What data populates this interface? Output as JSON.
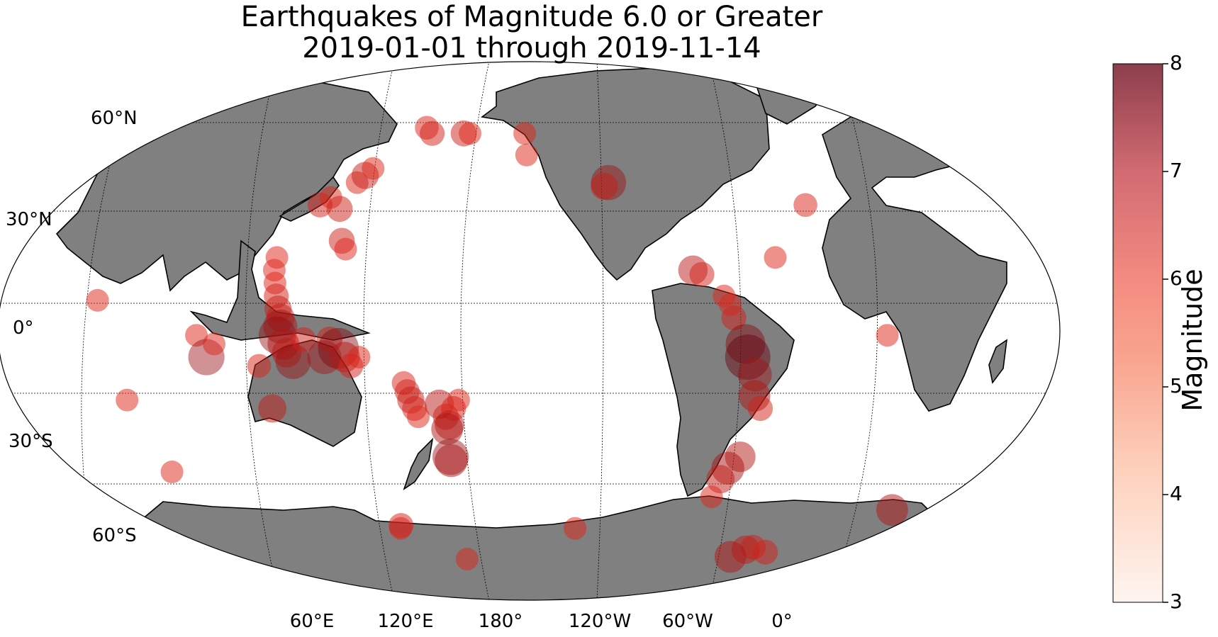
{
  "title": {
    "line1": "Earthquakes of Magnitude 6.0 or Greater",
    "line2": "2019-01-01 through 2019-11-14"
  },
  "map": {
    "projection": "Robinson",
    "central_longitude": "central Pacific",
    "land_color": "#808080",
    "ocean_color": "#ffffff",
    "coastline_color": "#000000",
    "marker_color": "#dd2418",
    "lat_labels": [
      "60°N",
      "30°N",
      "0°",
      "30°S",
      "60°S"
    ],
    "lon_labels": [
      "60°E",
      "120°E",
      "180°",
      "120°W",
      "60°W",
      "0°"
    ]
  },
  "colorbar": {
    "label": "Magnitude",
    "ticks": [
      "8",
      "7",
      "6",
      "5",
      "4",
      "3"
    ],
    "min": 3,
    "max": 8,
    "color_low": "#fff5f0",
    "color_high": "#67000d"
  },
  "chart_data": {
    "type": "scatter",
    "title": "Earthquakes of Magnitude 6.0 or Greater\n2019-01-01 through 2019-11-14",
    "xlabel": "",
    "ylabel": "",
    "x_axis": "longitude",
    "y_axis": "latitude",
    "size_and_color": "magnitude",
    "points": [
      {
        "lon": 60,
        "lat": 7,
        "mag": 6.0
      },
      {
        "lon": 67,
        "lat": -16,
        "mag": 6.0
      },
      {
        "lon": 69,
        "lat": -34,
        "mag": 6.0
      },
      {
        "lon": 95,
        "lat": -1,
        "mag": 6.0
      },
      {
        "lon": 98,
        "lat": -6,
        "mag": 7.2
      },
      {
        "lon": 101,
        "lat": -3,
        "mag": 6.0
      },
      {
        "lon": 116,
        "lat": -8,
        "mag": 6.1
      },
      {
        "lon": 118,
        "lat": -18,
        "mag": 6.5
      },
      {
        "lon": 120,
        "lat": 17,
        "mag": 6.0
      },
      {
        "lon": 120,
        "lat": 14,
        "mag": 6.0
      },
      {
        "lon": 121,
        "lat": 11,
        "mag": 6.0
      },
      {
        "lon": 122,
        "lat": 8,
        "mag": 6.2
      },
      {
        "lon": 123,
        "lat": 5,
        "mag": 6.4
      },
      {
        "lon": 124,
        "lat": 3,
        "mag": 6.5
      },
      {
        "lon": 124,
        "lat": 1,
        "mag": 7.0
      },
      {
        "lon": 123,
        "lat": -1,
        "mag": 7.3
      },
      {
        "lon": 125,
        "lat": -3,
        "mag": 6.8
      },
      {
        "lon": 126,
        "lat": -5,
        "mag": 6.6
      },
      {
        "lon": 128,
        "lat": -7,
        "mag": 7.1
      },
      {
        "lon": 132,
        "lat": -2,
        "mag": 6.2
      },
      {
        "lon": 139,
        "lat": -6,
        "mag": 7.0
      },
      {
        "lon": 141,
        "lat": -2,
        "mag": 6.3
      },
      {
        "lon": 144,
        "lat": -4,
        "mag": 7.6
      },
      {
        "lon": 146,
        "lat": -6,
        "mag": 6.7
      },
      {
        "lon": 148,
        "lat": -8,
        "mag": 6.2
      },
      {
        "lon": 151,
        "lat": -6,
        "mag": 6.0
      },
      {
        "lon": 130,
        "lat": 30,
        "mag": 6.2
      },
      {
        "lon": 133,
        "lat": 32,
        "mag": 6.0
      },
      {
        "lon": 138,
        "lat": 29,
        "mag": 6.3
      },
      {
        "lon": 141,
        "lat": 36,
        "mag": 6.0
      },
      {
        "lon": 143,
        "lat": 38,
        "mag": 6.4
      },
      {
        "lon": 145,
        "lat": 40,
        "mag": 6.0
      },
      {
        "lon": 142,
        "lat": 21,
        "mag": 6.3
      },
      {
        "lon": 144,
        "lat": 19,
        "mag": 6.0
      },
      {
        "lon": 160,
        "lat": 53,
        "mag": 6.1
      },
      {
        "lon": 164,
        "lat": 51,
        "mag": 6.2
      },
      {
        "lon": 179,
        "lat": 51,
        "mag": 6.3
      },
      {
        "lon": 182,
        "lat": 51,
        "mag": 6.0
      },
      {
        "lon": 166,
        "lat": -12,
        "mag": 6.1
      },
      {
        "lon": 167,
        "lat": -14,
        "mag": 6.2
      },
      {
        "lon": 168,
        "lat": -16,
        "mag": 6.4
      },
      {
        "lon": 169,
        "lat": -18,
        "mag": 6.2
      },
      {
        "lon": 170,
        "lat": -20,
        "mag": 6.0
      },
      {
        "lon": 178,
        "lat": -17,
        "mag": 6.6
      },
      {
        "lon": 180,
        "lat": -20,
        "mag": 6.3
      },
      {
        "lon": 181,
        "lat": -22,
        "mag": 6.6
      },
      {
        "lon": 183,
        "lat": -18,
        "mag": 6.2
      },
      {
        "lon": 185,
        "lat": -16,
        "mag": 6.0
      },
      {
        "lon": 180,
        "lat": -23,
        "mag": 6.8
      },
      {
        "lon": 180,
        "lat": -30,
        "mag": 7.2
      },
      {
        "lon": 180,
        "lat": -31,
        "mag": 6.9
      },
      {
        "lon": 149,
        "lat": -51,
        "mag": 6.0
      },
      {
        "lon": 150,
        "lat": -50,
        "mag": 6.2
      },
      {
        "lon": 174,
        "lat": -63,
        "mag": 6.0
      },
      {
        "lon": 208,
        "lat": 51,
        "mag": 6.0
      },
      {
        "lon": 209,
        "lat": 44,
        "mag": 6.0
      },
      {
        "lon": 242,
        "lat": 36,
        "mag": 7.1
      },
      {
        "lon": 240,
        "lat": 35,
        "mag": 6.4
      },
      {
        "lon": 232,
        "lat": -51,
        "mag": 6.0
      },
      {
        "lon": 268,
        "lat": 14,
        "mag": 6.6
      },
      {
        "lon": 271,
        "lat": 13,
        "mag": 6.2
      },
      {
        "lon": 278,
        "lat": 8,
        "mag": 6.0
      },
      {
        "lon": 280,
        "lat": 6,
        "mag": 6.0
      },
      {
        "lon": 281,
        "lat": 3,
        "mag": 6.2
      },
      {
        "lon": 285,
        "lat": -3,
        "mag": 7.5
      },
      {
        "lon": 286,
        "lat": -6,
        "mag": 8.0
      },
      {
        "lon": 289,
        "lat": -10,
        "mag": 7.0
      },
      {
        "lon": 290,
        "lat": -15,
        "mag": 6.8
      },
      {
        "lon": 293,
        "lat": -18,
        "mag": 6.2
      },
      {
        "lon": 291,
        "lat": -30,
        "mag": 6.7
      },
      {
        "lon": 288,
        "lat": -33,
        "mag": 6.9
      },
      {
        "lon": 287,
        "lat": -36,
        "mag": 6.5
      },
      {
        "lon": 287,
        "lat": -41,
        "mag": 6.0
      },
      {
        "lon": 298,
        "lat": 17,
        "mag": 6.0
      },
      {
        "lon": 316,
        "lat": 30,
        "mag": 6.1
      },
      {
        "lon": 334,
        "lat": -1,
        "mag": 6.0
      },
      {
        "lon": 329,
        "lat": -58,
        "mag": 6.2
      },
      {
        "lon": 327,
        "lat": -59,
        "mag": 6.5
      },
      {
        "lon": 325,
        "lat": -62,
        "mag": 6.8
      },
      {
        "lon": 340,
        "lat": -60,
        "mag": 6.2
      },
      {
        "lon": 10,
        "lat": -45,
        "mag": 6.8
      }
    ]
  }
}
